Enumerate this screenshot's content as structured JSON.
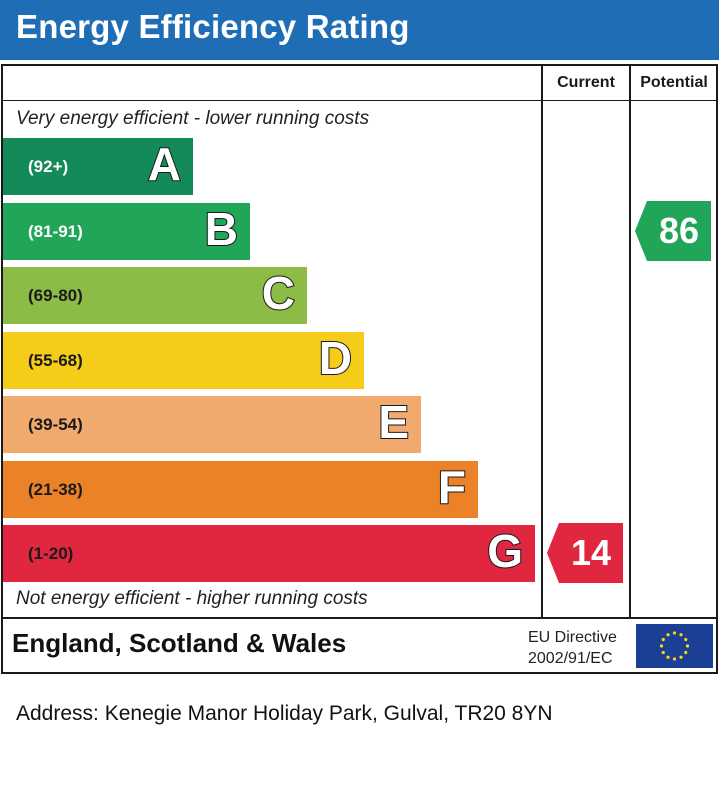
{
  "title": "Energy Efficiency Rating",
  "columns": {
    "current": "Current",
    "potential": "Potential"
  },
  "top_hint": "Very energy efficient - lower running costs",
  "bottom_hint": "Not energy efficient - higher running costs",
  "chart_data": {
    "type": "bar",
    "bands": [
      {
        "letter": "A",
        "range": "(92+)",
        "color": "#138a58",
        "text_color": "#ffffff"
      },
      {
        "letter": "B",
        "range": "(81-91)",
        "color": "#21a559",
        "text_color": "#ffffff"
      },
      {
        "letter": "C",
        "range": "(69-80)",
        "color": "#8dbc46",
        "text_color": "#1a1a1a"
      },
      {
        "letter": "D",
        "range": "(55-68)",
        "color": "#f5cc19",
        "text_color": "#1a1a1a"
      },
      {
        "letter": "E",
        "range": "(39-54)",
        "color": "#f1aa6d",
        "text_color": "#1a1a1a"
      },
      {
        "letter": "F",
        "range": "(21-38)",
        "color": "#ec8227",
        "text_color": "#1a1a1a"
      },
      {
        "letter": "G",
        "range": "(1-20)",
        "color": "#e12640",
        "text_color": "#1a1a1a"
      }
    ],
    "current": {
      "value": "14",
      "band": "G",
      "color": "#e12640"
    },
    "potential": {
      "value": "86",
      "band": "B",
      "color": "#21a559"
    }
  },
  "footer": {
    "region": "England, Scotland & Wales",
    "directive_line1": "EU Directive",
    "directive_line2": "2002/91/EC"
  },
  "address": "Address: Kenegie Manor Holiday Park, Gulval, TR20 8YN"
}
